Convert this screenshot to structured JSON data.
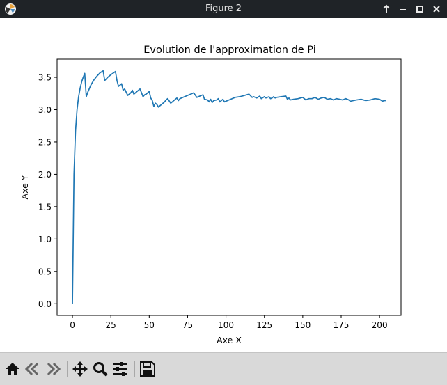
{
  "window": {
    "title": "Figure 2",
    "icons": {
      "app": "matplotlib-app-icon",
      "maximize": "arrow-up-icon",
      "minimize": "minimize-icon",
      "restore": "square-icon",
      "close": "close-icon"
    }
  },
  "toolbar": {
    "items": [
      {
        "name": "home",
        "icon": "home-icon"
      },
      {
        "name": "back",
        "icon": "back-arrow-icon"
      },
      {
        "name": "forward",
        "icon": "forward-arrow-icon"
      },
      {
        "name": "pan",
        "icon": "move-icon"
      },
      {
        "name": "zoom",
        "icon": "zoom-icon"
      },
      {
        "name": "configure-subplots",
        "icon": "sliders-icon"
      },
      {
        "name": "save",
        "icon": "save-icon"
      }
    ]
  },
  "colors": {
    "line": "#1f77b4",
    "titlebar": "#1f2327",
    "toolbar": "#d9d9d9"
  },
  "chart_data": {
    "type": "line",
    "title": "Evolution de l'approximation de Pi",
    "xlabel": "Axe X",
    "ylabel": "Axe Y",
    "xlim": [
      -10,
      214
    ],
    "ylim": [
      -0.18,
      3.78
    ],
    "xticks": [
      0,
      25,
      50,
      75,
      100,
      125,
      150,
      175,
      200
    ],
    "xtick_labels": [
      "0",
      "25",
      "50",
      "75",
      "100",
      "125",
      "150",
      "175",
      "200"
    ],
    "yticks": [
      0.0,
      0.5,
      1.0,
      1.5,
      2.0,
      2.5,
      3.0,
      3.5
    ],
    "ytick_labels": [
      "0.0",
      "0.5",
      "1.0",
      "1.5",
      "2.0",
      "2.5",
      "3.0",
      "3.5"
    ],
    "grid": false,
    "series": [
      {
        "x": [
          0,
          1,
          2,
          3,
          4,
          5,
          6,
          7,
          8,
          9,
          10,
          12,
          14,
          16,
          18,
          20,
          21,
          23,
          25,
          28,
          29,
          30,
          31,
          32,
          33,
          34,
          36,
          38,
          39,
          40,
          41,
          44,
          46,
          47,
          48,
          50,
          51,
          52,
          53,
          54,
          55,
          56,
          60,
          61,
          62,
          64,
          66,
          68,
          69,
          70,
          73,
          76,
          79,
          81,
          83,
          85,
          86,
          88,
          89,
          90,
          91,
          92,
          94,
          95,
          96,
          97,
          98,
          99,
          100,
          101,
          103,
          106,
          109,
          112,
          115,
          117,
          118,
          120,
          122,
          123,
          125,
          126,
          128,
          129,
          130,
          131,
          132,
          133,
          136,
          139,
          140,
          141,
          142,
          144,
          147,
          150,
          152,
          154,
          156,
          158,
          160,
          162,
          164,
          166,
          168,
          170,
          172,
          174,
          176,
          178,
          180,
          181,
          183,
          185,
          188,
          191,
          194,
          197,
          200,
          202,
          203,
          204
        ],
        "y": [
          0.0,
          2.0,
          2.67,
          3.0,
          3.2,
          3.33,
          3.43,
          3.5,
          3.56,
          3.2,
          3.27,
          3.38,
          3.46,
          3.52,
          3.57,
          3.6,
          3.45,
          3.5,
          3.54,
          3.59,
          3.45,
          3.36,
          3.38,
          3.4,
          3.3,
          3.32,
          3.22,
          3.26,
          3.3,
          3.24,
          3.26,
          3.32,
          3.2,
          3.23,
          3.24,
          3.28,
          3.18,
          3.14,
          3.05,
          3.1,
          3.08,
          3.04,
          3.12,
          3.15,
          3.17,
          3.1,
          3.14,
          3.18,
          3.14,
          3.17,
          3.2,
          3.23,
          3.26,
          3.19,
          3.21,
          3.23,
          3.16,
          3.15,
          3.12,
          3.16,
          3.11,
          3.14,
          3.15,
          3.17,
          3.12,
          3.14,
          3.16,
          3.12,
          3.13,
          3.14,
          3.16,
          3.19,
          3.2,
          3.22,
          3.24,
          3.19,
          3.2,
          3.18,
          3.21,
          3.17,
          3.2,
          3.18,
          3.2,
          3.17,
          3.18,
          3.2,
          3.18,
          3.19,
          3.2,
          3.21,
          3.16,
          3.18,
          3.15,
          3.16,
          3.17,
          3.19,
          3.15,
          3.17,
          3.17,
          3.19,
          3.16,
          3.18,
          3.19,
          3.16,
          3.17,
          3.15,
          3.17,
          3.16,
          3.15,
          3.17,
          3.15,
          3.13,
          3.14,
          3.15,
          3.16,
          3.14,
          3.15,
          3.17,
          3.16,
          3.13,
          3.14,
          3.14
        ]
      }
    ]
  }
}
